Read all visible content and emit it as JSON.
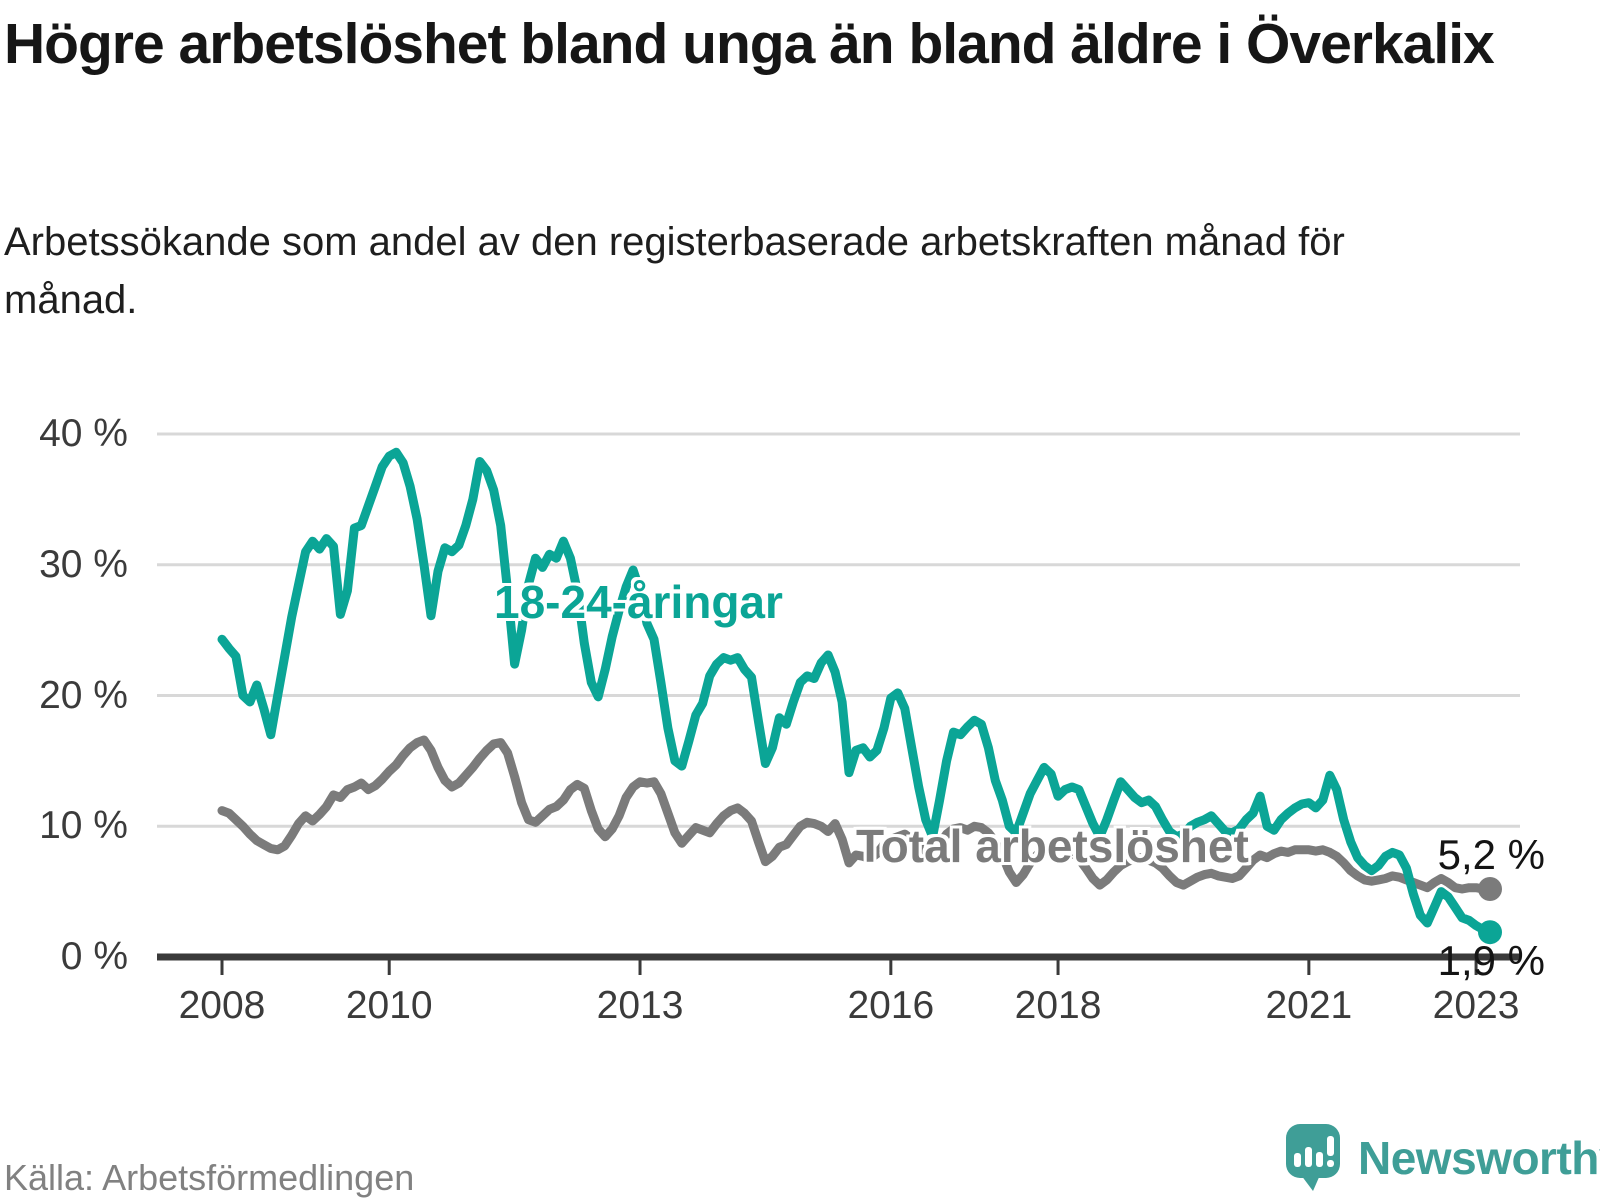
{
  "chart_data": {
    "type": "line",
    "title": "Högre arbetslöshet bland unga än bland äldre i Överkalix",
    "subtitle": "Arbetssökande som andel av den registerbaserade arbetskraften månad för månad.",
    "unit": "%",
    "frequency": "monthly",
    "x_start": "2008-01",
    "x_end": "2023-03",
    "ylim": [
      0,
      40
    ],
    "grid": "horizontal",
    "grid_color": "#d8d8d8",
    "axis_color": "#3a3a3a",
    "y_ticks": [
      {
        "value": 0,
        "label": "0 %"
      },
      {
        "value": 10,
        "label": "10 %"
      },
      {
        "value": 20,
        "label": "20 %"
      },
      {
        "value": 30,
        "label": "30 %"
      },
      {
        "value": 40,
        "label": "40 %"
      }
    ],
    "x_ticks": [
      "2008",
      "2010",
      "2013",
      "2016",
      "2018",
      "2021",
      "2023"
    ],
    "series": [
      {
        "name": "18-24-åringar",
        "color": "#0ba596",
        "end_label": "1,9 %",
        "final_value": 1.9,
        "values": [
          24.3,
          23.6,
          23.0,
          20.0,
          19.5,
          20.8,
          19.0,
          17.0,
          20.0,
          23.0,
          26.0,
          28.5,
          31.0,
          31.8,
          31.2,
          32.0,
          31.4,
          26.2,
          28.0,
          32.8,
          33.0,
          34.5,
          36.0,
          37.5,
          38.3,
          38.6,
          37.8,
          36.0,
          33.5,
          30.0,
          26.1,
          29.5,
          31.3,
          31.0,
          31.5,
          33.0,
          35.0,
          37.9,
          37.2,
          35.7,
          33.0,
          28.0,
          22.4,
          25.0,
          28.5,
          30.5,
          29.8,
          30.8,
          30.5,
          31.8,
          30.5,
          28.0,
          24.0,
          21.0,
          19.9,
          22.0,
          24.5,
          26.5,
          28.3,
          29.6,
          28.0,
          25.5,
          24.3,
          21.0,
          17.5,
          15.0,
          14.6,
          16.5,
          18.5,
          19.4,
          21.5,
          22.4,
          22.9,
          22.7,
          22.9,
          22.0,
          21.4,
          18.0,
          14.8,
          16.0,
          18.3,
          17.8,
          19.5,
          21.0,
          21.5,
          21.3,
          22.5,
          23.1,
          21.8,
          19.5,
          14.1,
          15.8,
          16.0,
          15.3,
          15.8,
          17.5,
          19.8,
          20.2,
          19.0,
          16.0,
          13.0,
          10.5,
          9.2,
          12.0,
          15.0,
          17.2,
          17.0,
          17.6,
          18.1,
          17.8,
          16.0,
          13.5,
          12.0,
          10.0,
          9.5,
          11.0,
          12.5,
          13.5,
          14.5,
          14.0,
          12.3,
          12.8,
          13.0,
          12.8,
          11.5,
          10.2,
          9.2,
          10.5,
          12.0,
          13.4,
          12.8,
          12.2,
          11.8,
          12.0,
          11.5,
          10.5,
          9.6,
          9.2,
          9.4,
          10.0,
          10.3,
          10.5,
          10.8,
          10.2,
          9.6,
          9.5,
          9.8,
          10.5,
          11.0,
          12.3,
          10.0,
          9.7,
          10.5,
          11.0,
          11.4,
          11.7,
          11.8,
          11.4,
          12.0,
          13.9,
          12.8,
          10.5,
          8.8,
          7.6,
          7.0,
          6.6,
          7.0,
          7.7,
          8.0,
          7.8,
          6.8,
          4.8,
          3.2,
          2.6,
          3.8,
          5.0,
          4.6,
          3.8,
          3.0,
          2.8,
          2.4,
          2.1,
          1.9
        ]
      },
      {
        "name": "Total arbetslöshet",
        "color": "#7b7b7b",
        "end_label": "5,2 %",
        "final_value": 5.2,
        "values": [
          11.2,
          11.0,
          10.5,
          10.0,
          9.4,
          8.9,
          8.6,
          8.3,
          8.2,
          8.5,
          9.3,
          10.2,
          10.8,
          10.4,
          10.9,
          11.5,
          12.4,
          12.2,
          12.8,
          13.0,
          13.3,
          12.8,
          13.1,
          13.6,
          14.2,
          14.7,
          15.4,
          16.0,
          16.4,
          16.6,
          15.8,
          14.5,
          13.5,
          13.0,
          13.3,
          13.9,
          14.5,
          15.2,
          15.8,
          16.3,
          16.4,
          15.6,
          13.8,
          11.8,
          10.5,
          10.3,
          10.8,
          11.3,
          11.5,
          12.0,
          12.8,
          13.2,
          12.9,
          11.2,
          9.8,
          9.2,
          9.8,
          10.8,
          12.2,
          13.0,
          13.4,
          13.3,
          13.4,
          12.5,
          11.0,
          9.5,
          8.7,
          9.3,
          9.9,
          9.7,
          9.5,
          10.2,
          10.8,
          11.2,
          11.4,
          11.0,
          10.4,
          8.8,
          7.3,
          7.7,
          8.4,
          8.6,
          9.3,
          10.0,
          10.3,
          10.2,
          10.0,
          9.6,
          10.2,
          9.0,
          7.2,
          7.8,
          7.7,
          7.5,
          7.9,
          8.6,
          9.0,
          9.2,
          9.4,
          9.0,
          8.5,
          8.0,
          7.8,
          8.6,
          9.4,
          9.8,
          9.9,
          9.7,
          10.0,
          9.9,
          9.5,
          8.8,
          7.8,
          6.5,
          5.7,
          6.3,
          7.2,
          7.8,
          8.3,
          8.6,
          8.5,
          8.3,
          8.0,
          7.5,
          6.8,
          6.0,
          5.5,
          5.9,
          6.5,
          7.0,
          7.3,
          7.5,
          7.6,
          7.4,
          7.2,
          6.8,
          6.2,
          5.7,
          5.5,
          5.8,
          6.1,
          6.3,
          6.4,
          6.2,
          6.1,
          6.0,
          6.2,
          6.8,
          7.4,
          7.8,
          7.6,
          7.9,
          8.1,
          8.0,
          8.2,
          8.2,
          8.2,
          8.1,
          8.2,
          8.0,
          7.7,
          7.2,
          6.6,
          6.2,
          5.9,
          5.8,
          5.9,
          6.0,
          6.2,
          6.1,
          5.9,
          5.7,
          5.5,
          5.3,
          5.7,
          6.0,
          5.7,
          5.3,
          5.2,
          5.3,
          5.3,
          5.2,
          5.2
        ]
      }
    ]
  },
  "footer": {
    "source": "Källa: Arbetsförmedlingen",
    "brand": "Newsworthy",
    "brand_color": "#3f9e97"
  }
}
